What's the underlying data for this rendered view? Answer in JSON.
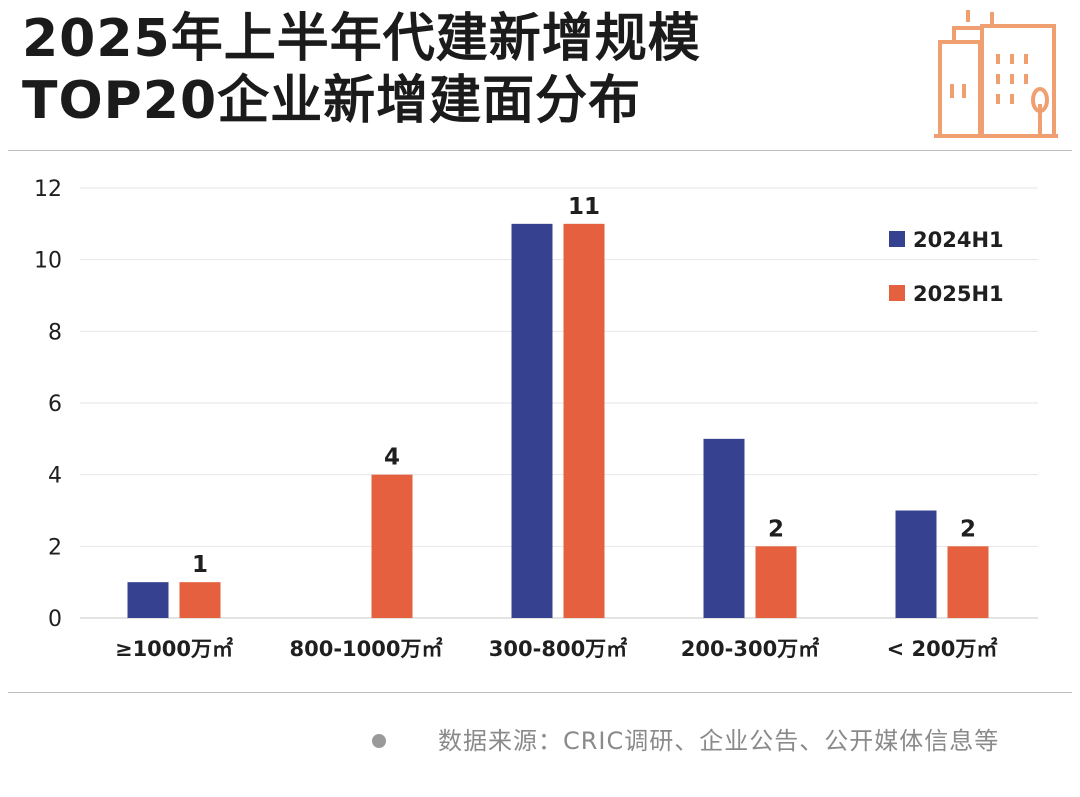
{
  "title": {
    "line1": "2025年上半年代建新增规模",
    "line2": "TOP20企业新增建面分布"
  },
  "source": "数据来源：CRIC调研、企业公告、公开媒体信息等",
  "colors": {
    "series_2024": "#36428f",
    "series_2025": "#e4603f",
    "icon": "#f0a070"
  },
  "icons": {
    "header": "building-icon"
  },
  "chart_data": {
    "type": "bar",
    "categories": [
      "≥1000万㎡",
      "800-1000万㎡",
      "300-800万㎡",
      "200-300万㎡",
      "< 200万㎡"
    ],
    "series": [
      {
        "name": "2024H1",
        "values": [
          1,
          0,
          11,
          5,
          3
        ],
        "color": "#36428f"
      },
      {
        "name": "2025H1",
        "values": [
          1,
          4,
          11,
          2,
          2
        ],
        "color": "#e4603f"
      }
    ],
    "data_labels": {
      "2025H1": [
        "1",
        "4",
        "11",
        "2",
        "2"
      ]
    },
    "yticks": [
      "0",
      "2",
      "4",
      "6",
      "8",
      "10",
      "12"
    ],
    "ylim": [
      0,
      12
    ],
    "grid": true,
    "legend": "top-right",
    "title": "",
    "xlabel": "",
    "ylabel": ""
  }
}
